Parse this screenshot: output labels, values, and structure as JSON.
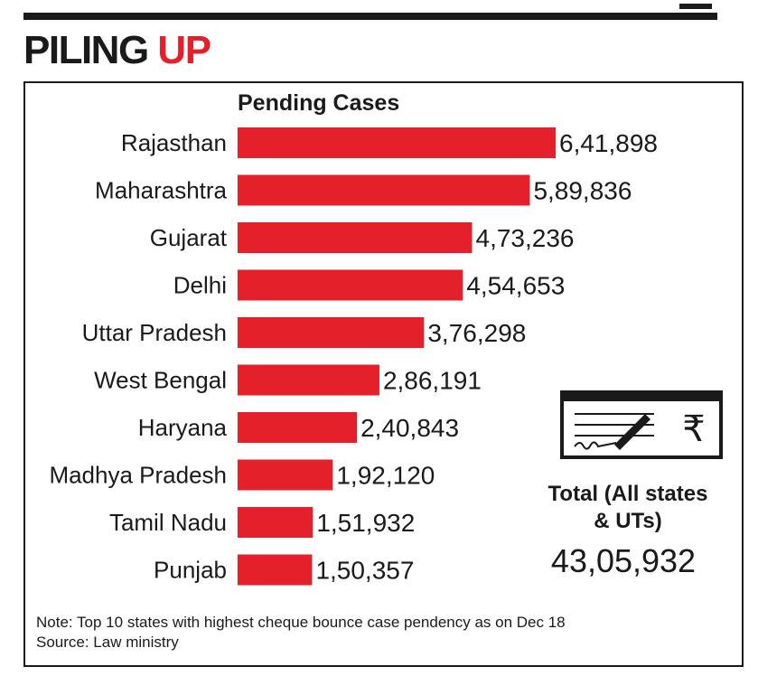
{
  "headline": {
    "word1": "PILING",
    "word2": "UP"
  },
  "chart_data": {
    "type": "bar",
    "orientation": "horizontal",
    "title": "Pending Cases",
    "categories": [
      "Rajasthan",
      "Maharashtra",
      "Gujarat",
      "Delhi",
      "Uttar Pradesh",
      "West Bengal",
      "Haryana",
      "Madhya Pradesh",
      "Tamil Nadu",
      "Punjab"
    ],
    "values": [
      641898,
      589836,
      473236,
      454653,
      376298,
      286191,
      240843,
      192120,
      151932,
      150357
    ],
    "value_labels": [
      "6,41,898",
      "5,89,836",
      "4,73,236",
      "4,54,653",
      "3,76,298",
      "2,86,191",
      "2,40,843",
      "1,92,120",
      "1,51,932",
      "1,50,357"
    ],
    "bar_color": "#e4202b",
    "grid": false,
    "legend": "none"
  },
  "total": {
    "title_line1": "Total (All states",
    "title_line2": "& UTs)",
    "value": "43,05,932"
  },
  "notes": {
    "note": "Note: Top 10 states with highest cheque bounce case pendency as on Dec 18",
    "source": "Source: Law ministry"
  },
  "cheque_icon": {
    "name": "cheque-rupee-icon",
    "symbol": "₹"
  }
}
